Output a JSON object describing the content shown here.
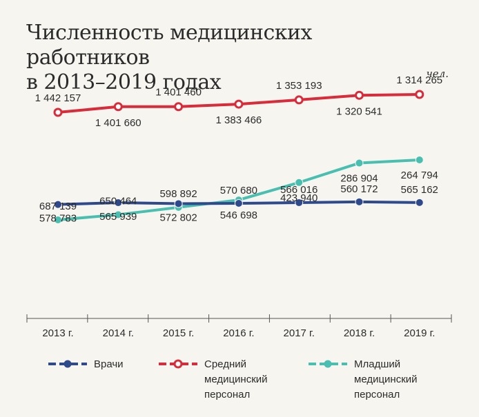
{
  "title": "Численность медицинских работников\nв 2013–2019 годах",
  "unit": "чел.",
  "chart_data": {
    "type": "line",
    "categories": [
      "2013 г.",
      "2014 г.",
      "2015 г.",
      "2016 г.",
      "2017 г.",
      "2018 г.",
      "2019 г."
    ],
    "series": [
      {
        "name": "Врачи",
        "color": "#2e4a8c",
        "marker": "filled",
        "values": [
          578783,
          565939,
          572802,
          570680,
          566016,
          560172,
          565162
        ],
        "labels": [
          "578 783",
          "565 939",
          "572 802",
          "570 680",
          "566 016",
          "560 172",
          "565 162"
        ]
      },
      {
        "name": "Средний медицинский персонал",
        "legend_label": "Средний\nмедицинский\nперсонал",
        "color": "#d92b3a",
        "marker": "open",
        "values": [
          1442157,
          1401660,
          1401460,
          1383466,
          1353193,
          1320541,
          1314265
        ],
        "labels": [
          "1 442 157",
          "1 401 660",
          "1 401 460",
          "1 383 466",
          "1 353 193",
          "1 320 541",
          "1 314 265"
        ]
      },
      {
        "name": "Младший медицинский персонал",
        "legend_label": "Младший\nмедицинский\nперсонал",
        "color": "#48bfb0",
        "marker": "filled",
        "values": [
          687139,
          650464,
          598892,
          546698,
          423940,
          286904,
          264794
        ],
        "labels": [
          "687 139",
          "650 464",
          "598 892",
          "546 698",
          "423 940",
          "286 904",
          "264 794"
        ]
      }
    ],
    "grid": false,
    "legend_position": "bottom"
  }
}
